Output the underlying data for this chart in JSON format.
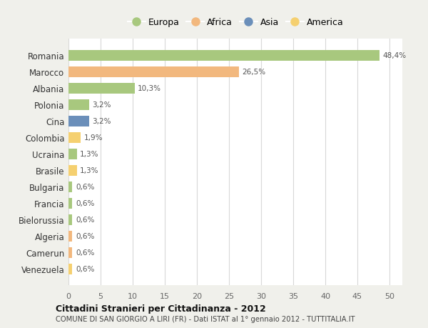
{
  "categories": [
    "Romania",
    "Marocco",
    "Albania",
    "Polonia",
    "Cina",
    "Colombia",
    "Ucraina",
    "Brasile",
    "Bulgaria",
    "Francia",
    "Bielorussia",
    "Algeria",
    "Camerun",
    "Venezuela"
  ],
  "values": [
    48.4,
    26.5,
    10.3,
    3.2,
    3.2,
    1.9,
    1.3,
    1.3,
    0.6,
    0.6,
    0.6,
    0.6,
    0.6,
    0.6
  ],
  "labels": [
    "48,4%",
    "26,5%",
    "10,3%",
    "3,2%",
    "3,2%",
    "1,9%",
    "1,3%",
    "1,3%",
    "0,6%",
    "0,6%",
    "0,6%",
    "0,6%",
    "0,6%",
    "0,6%"
  ],
  "continent": [
    "Europa",
    "Africa",
    "Europa",
    "Europa",
    "Asia",
    "America",
    "Europa",
    "America",
    "Europa",
    "Europa",
    "Europa",
    "Africa",
    "Africa",
    "America"
  ],
  "colors": {
    "Europa": "#a8c87e",
    "Africa": "#f2b87e",
    "Asia": "#6b8fba",
    "America": "#f5d070"
  },
  "legend_order": [
    "Europa",
    "Africa",
    "Asia",
    "America"
  ],
  "title1": "Cittadini Stranieri per Cittadinanza - 2012",
  "title2": "COMUNE DI SAN GIORGIO A LIRI (FR) - Dati ISTAT al 1° gennaio 2012 - TUTTITALIA.IT",
  "xlim": [
    0,
    52
  ],
  "xticks": [
    0,
    5,
    10,
    15,
    20,
    25,
    30,
    35,
    40,
    45,
    50
  ],
  "background_color": "#f0f0eb",
  "bar_background": "#ffffff",
  "grid_color": "#d8d8d8"
}
